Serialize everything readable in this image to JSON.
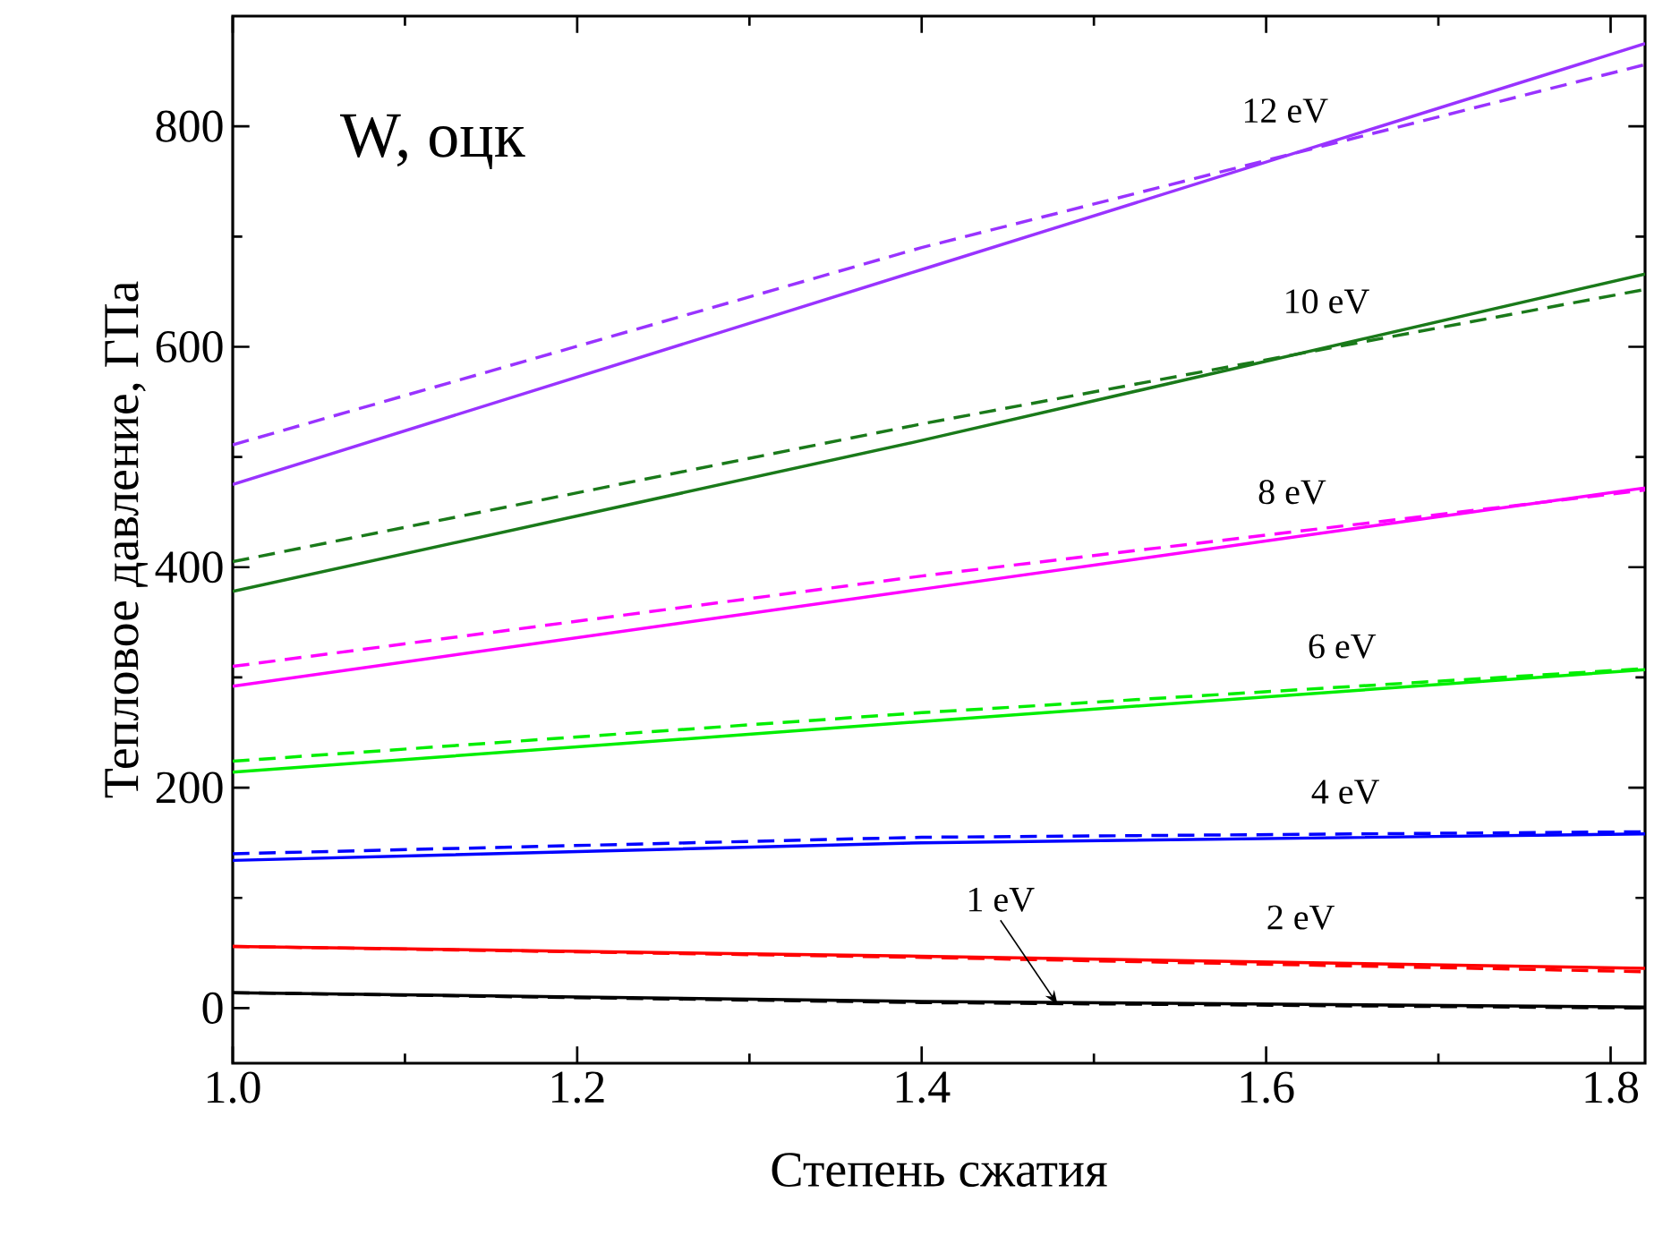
{
  "chart_data": {
    "type": "line",
    "xlabel": "Степень сжатия",
    "ylabel": "Тепловое давление, ГПа",
    "x": [
      1.0,
      1.4,
      1.82
    ],
    "series": [
      {
        "color": "#9933ff",
        "line_style": "solid",
        "values": [
          475,
          670,
          875
        ]
      },
      {
        "color": "#9933ff",
        "line_style": "dashed",
        "values": [
          511,
          690,
          856
        ]
      },
      {
        "color": "#1a7a1a",
        "line_style": "solid",
        "values": [
          378,
          515,
          666
        ]
      },
      {
        "color": "#1a7a1a",
        "line_style": "dashed",
        "values": [
          405,
          530,
          652
        ]
      },
      {
        "color": "#ff00ff",
        "line_style": "solid",
        "values": [
          292,
          380,
          472
        ]
      },
      {
        "color": "#ff00ff",
        "line_style": "dashed",
        "values": [
          310,
          392,
          470
        ]
      },
      {
        "color": "#00ee00",
        "line_style": "solid",
        "values": [
          214,
          260,
          307
        ]
      },
      {
        "color": "#00ee00",
        "line_style": "dashed",
        "values": [
          224,
          268,
          308
        ]
      },
      {
        "color": "#0000ff",
        "line_style": "solid",
        "values": [
          134,
          150,
          158
        ]
      },
      {
        "color": "#0000ff",
        "line_style": "dashed",
        "values": [
          140,
          155,
          160
        ]
      },
      {
        "color": "#ff0000",
        "line_style": "solid",
        "values": [
          56,
          47,
          36
        ]
      },
      {
        "color": "#ff0000",
        "line_style": "dashed",
        "values": [
          56,
          46,
          33
        ]
      },
      {
        "color": "#000000",
        "line_style": "solid",
        "values": [
          14,
          6,
          1
        ]
      },
      {
        "color": "#000000",
        "line_style": "dashed",
        "values": [
          14,
          5,
          0
        ]
      }
    ],
    "annotations": [
      "W, оцк",
      {
        "text": "12 eV",
        "x": 1.611,
        "y": 773
      },
      {
        "text": "10 eV",
        "x": 1.635,
        "y": 600
      },
      {
        "text": "8 eV",
        "x": 1.615,
        "y": 427
      },
      {
        "text": "6 eV",
        "x": 1.644,
        "y": 287
      },
      {
        "text": "4 eV",
        "x": 1.646,
        "y": 155
      },
      {
        "text": "2 eV",
        "x": 1.62,
        "y": 41
      },
      {
        "text": "1 eV",
        "x": 1.479,
        "y": 3
      }
    ],
    "xlim": [
      1.0,
      1.82
    ],
    "ylim": [
      -50,
      900
    ],
    "xticks": [
      {
        "value": 1.0,
        "label": "1.0"
      },
      1.2,
      1.4,
      1.6,
      1.8
    ],
    "yticks": [
      0,
      200,
      400,
      600,
      800
    ],
    "grid": false,
    "marker": "none"
  }
}
